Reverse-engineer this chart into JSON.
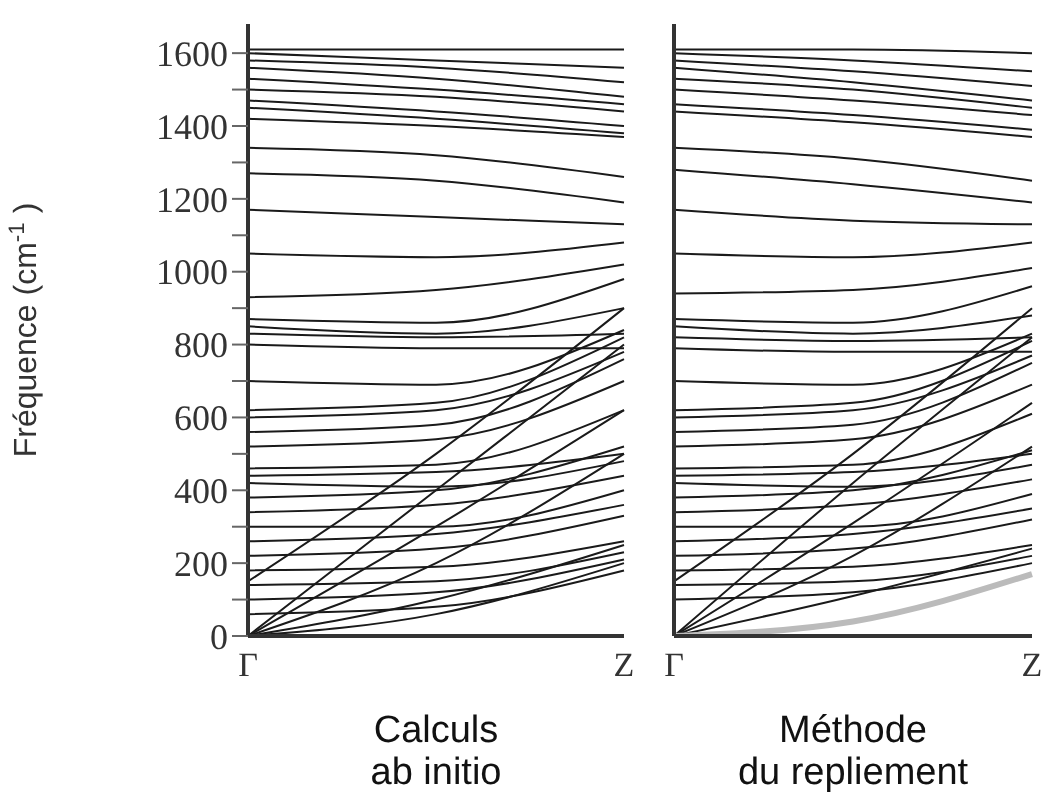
{
  "chart_data": [
    {
      "type": "line",
      "xlabel": "Calculs ab initio",
      "ylabel": "Fréquence (cm$^{-1}$)",
      "color": "#1a1a1a",
      "marker": "none",
      "line_style": "solid",
      "categories": [
        "Γ",
        null,
        "Z"
      ],
      "ylim": [
        0,
        1680
      ],
      "yticks": [
        0,
        {
          "value": 100,
          "label": null
        },
        200,
        {
          "value": 300,
          "label": null
        },
        400,
        {
          "value": 500,
          "label": null
        },
        600,
        {
          "value": 700,
          "label": null
        },
        800,
        {
          "value": 900,
          "label": null
        },
        1000,
        {
          "value": 1100,
          "label": null
        },
        1200,
        {
          "value": 1300,
          "label": null
        },
        1400,
        {
          "value": 1500,
          "label": null
        },
        1600
      ],
      "series": [
        {
          "values": [
            1610,
            1610,
            1610
          ]
        },
        {
          "values": [
            1600,
            1580,
            1560
          ]
        },
        {
          "values": [
            1580,
            1560,
            1520
          ]
        },
        {
          "values": [
            1560,
            1530,
            1480
          ]
        },
        {
          "values": [
            1530,
            1500,
            1460
          ]
        },
        {
          "values": [
            1500,
            1480,
            1440
          ]
        },
        {
          "values": [
            1470,
            1440,
            1400
          ]
        },
        {
          "values": [
            1450,
            1420,
            1380
          ]
        },
        {
          "values": [
            1420,
            1400,
            1370
          ]
        },
        {
          "values": [
            1340,
            1320,
            1260
          ]
        },
        {
          "values": [
            1270,
            1250,
            1190
          ]
        },
        {
          "values": [
            1170,
            1150,
            1130
          ]
        },
        {
          "values": [
            1050,
            1040,
            1080
          ]
        },
        {
          "values": [
            930,
            950,
            1020
          ]
        },
        {
          "values": [
            870,
            860,
            980
          ]
        },
        {
          "values": [
            850,
            830,
            900
          ]
        },
        {
          "values": [
            830,
            820,
            830
          ]
        },
        {
          "values": [
            800,
            790,
            790
          ]
        },
        {
          "values": [
            700,
            690,
            840
          ]
        },
        {
          "values": [
            620,
            640,
            820
          ]
        },
        {
          "values": [
            600,
            620,
            780
          ]
        },
        {
          "values": [
            560,
            580,
            760
          ]
        },
        {
          "values": [
            520,
            540,
            700
          ]
        },
        {
          "values": [
            460,
            470,
            620
          ]
        },
        {
          "values": [
            440,
            450,
            500
          ]
        },
        {
          "values": [
            420,
            410,
            480
          ]
        },
        {
          "values": [
            380,
            400,
            520
          ]
        },
        {
          "values": [
            340,
            360,
            440
          ]
        },
        {
          "values": [
            300,
            300,
            400
          ]
        },
        {
          "values": [
            260,
            280,
            360
          ]
        },
        {
          "values": [
            220,
            240,
            330
          ]
        },
        {
          "values": [
            180,
            190,
            260
          ]
        },
        {
          "values": [
            140,
            150,
            230
          ]
        },
        {
          "values": [
            100,
            120,
            210
          ]
        },
        {
          "values": [
            60,
            80,
            180
          ]
        },
        {
          "values": [
            0,
            400,
            800
          ]
        },
        {
          "values": [
            0,
            300,
            620
          ]
        },
        {
          "values": [
            0,
            200,
            500
          ]
        },
        {
          "values": [
            0,
            100,
            250
          ]
        },
        {
          "values": [
            0,
            60,
            200
          ]
        },
        {
          "values": [
            150,
            500,
            900
          ]
        }
      ]
    },
    {
      "type": "line",
      "xlabel": "Méthode du repliement",
      "color": "#1a1a1a",
      "marker": "none",
      "line_style": "solid",
      "tick_labels": "x",
      "categories": [
        "Γ",
        null,
        "Z"
      ],
      "ylim": [
        0,
        1680
      ],
      "yticks": [
        {
          "value": 0,
          "label": null
        },
        {
          "value": 200,
          "label": null
        },
        {
          "value": 400,
          "label": null
        },
        {
          "value": 600,
          "label": null
        },
        {
          "value": 800,
          "label": null
        },
        {
          "value": 1000,
          "label": null
        },
        {
          "value": 1200,
          "label": null
        },
        {
          "value": 1400,
          "label": null
        },
        {
          "value": 1600,
          "label": null
        }
      ],
      "series": [
        {
          "values": [
            1610,
            1610,
            1600
          ]
        },
        {
          "values": [
            1600,
            1580,
            1550
          ]
        },
        {
          "values": [
            1580,
            1550,
            1510
          ]
        },
        {
          "values": [
            1560,
            1520,
            1470
          ]
        },
        {
          "values": [
            1530,
            1500,
            1450
          ]
        },
        {
          "values": [
            1500,
            1470,
            1430
          ]
        },
        {
          "values": [
            1460,
            1430,
            1390
          ]
        },
        {
          "values": [
            1440,
            1410,
            1370
          ]
        },
        {
          "values": [
            1340,
            1310,
            1250
          ]
        },
        {
          "values": [
            1280,
            1240,
            1190
          ]
        },
        {
          "values": [
            1170,
            1140,
            1130
          ]
        },
        {
          "values": [
            1050,
            1040,
            1080
          ]
        },
        {
          "values": [
            940,
            950,
            1010
          ]
        },
        {
          "values": [
            870,
            860,
            960
          ]
        },
        {
          "values": [
            850,
            830,
            880
          ]
        },
        {
          "values": [
            820,
            810,
            820
          ]
        },
        {
          "values": [
            790,
            780,
            780
          ]
        },
        {
          "values": [
            700,
            690,
            830
          ]
        },
        {
          "values": [
            620,
            640,
            810
          ]
        },
        {
          "values": [
            600,
            620,
            770
          ]
        },
        {
          "values": [
            560,
            580,
            750
          ]
        },
        {
          "values": [
            520,
            540,
            690
          ]
        },
        {
          "values": [
            460,
            470,
            610
          ]
        },
        {
          "values": [
            440,
            450,
            500
          ]
        },
        {
          "values": [
            420,
            410,
            470
          ]
        },
        {
          "values": [
            380,
            400,
            510
          ]
        },
        {
          "values": [
            340,
            360,
            430
          ]
        },
        {
          "values": [
            300,
            300,
            390
          ]
        },
        {
          "values": [
            260,
            280,
            350
          ]
        },
        {
          "values": [
            220,
            240,
            320
          ]
        },
        {
          "values": [
            180,
            190,
            250
          ]
        },
        {
          "values": [
            140,
            150,
            220
          ]
        },
        {
          "values": [
            100,
            120,
            200
          ]
        },
        {
          "values": [
            0,
            420,
            820
          ]
        },
        {
          "values": [
            0,
            310,
            640
          ]
        },
        {
          "values": [
            0,
            220,
            520
          ]
        },
        {
          "values": [
            0,
            110,
            240
          ]
        },
        {
          "values": [
            150,
            500,
            900
          ]
        },
        {
          "color": "#bbbbbb",
          "values": [
            0,
            40,
            170
          ]
        }
      ]
    }
  ]
}
